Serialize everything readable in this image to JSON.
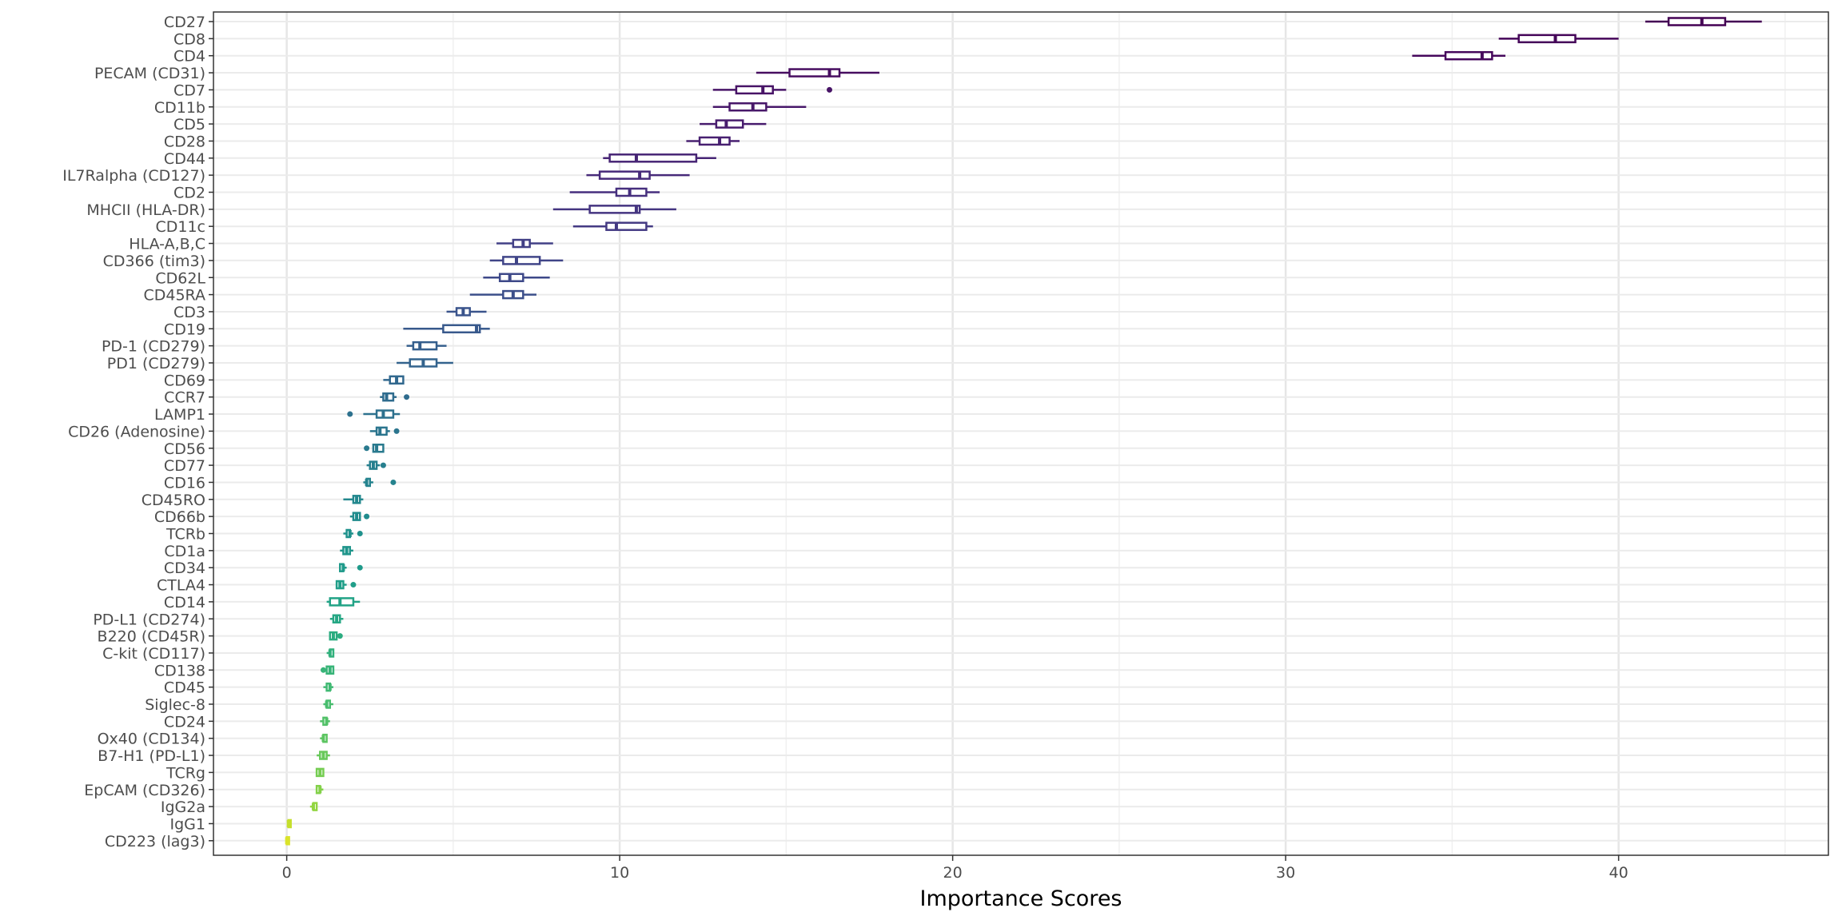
{
  "chart_data": {
    "type": "boxplot",
    "title": "",
    "xlabel": "Importance Scores",
    "ylabel": "",
    "xlim": [
      -2.2,
      46.3
    ],
    "x_ticks": [
      0,
      10,
      20,
      30,
      40
    ],
    "x_tick_labels": [
      "0",
      "10",
      "20",
      "30",
      "40"
    ],
    "grid": true,
    "legend": "none",
    "color_scale": "viridis",
    "series": [
      {
        "name": "CD27",
        "min": 40.8,
        "q1": 41.5,
        "median": 42.5,
        "q3": 43.2,
        "max": 44.3,
        "outliers": [],
        "color": "#440154"
      },
      {
        "name": "CD8",
        "min": 36.4,
        "q1": 37.0,
        "median": 38.1,
        "q3": 38.7,
        "max": 40.0,
        "outliers": [],
        "color": "#450559"
      },
      {
        "name": "CD4",
        "min": 33.8,
        "q1": 34.8,
        "median": 35.9,
        "q3": 36.2,
        "max": 36.6,
        "outliers": [],
        "color": "#46085c"
      },
      {
        "name": "PECAM (CD31)",
        "min": 14.1,
        "q1": 15.1,
        "median": 16.3,
        "q3": 16.6,
        "max": 17.8,
        "outliers": [],
        "color": "#470d60"
      },
      {
        "name": "CD7",
        "min": 12.8,
        "q1": 13.5,
        "median": 14.3,
        "q3": 14.6,
        "max": 15.0,
        "outliers": [
          16.3
        ],
        "color": "#481467"
      },
      {
        "name": "CD11b",
        "min": 12.8,
        "q1": 13.3,
        "median": 14.0,
        "q3": 14.4,
        "max": 15.6,
        "outliers": [],
        "color": "#48186a"
      },
      {
        "name": "CD5",
        "min": 12.4,
        "q1": 12.9,
        "median": 13.2,
        "q3": 13.7,
        "max": 14.4,
        "outliers": [],
        "color": "#481c6e"
      },
      {
        "name": "CD28",
        "min": 12.0,
        "q1": 12.4,
        "median": 13.0,
        "q3": 13.3,
        "max": 13.6,
        "outliers": [],
        "color": "#482071"
      },
      {
        "name": "CD44",
        "min": 9.5,
        "q1": 9.7,
        "median": 10.5,
        "q3": 12.3,
        "max": 12.9,
        "outliers": [],
        "color": "#472575"
      },
      {
        "name": "IL7Ralpha (CD127)",
        "min": 9.0,
        "q1": 9.4,
        "median": 10.6,
        "q3": 10.9,
        "max": 12.1,
        "outliers": [],
        "color": "#472a7a"
      },
      {
        "name": "CD2",
        "min": 8.5,
        "q1": 9.9,
        "median": 10.3,
        "q3": 10.8,
        "max": 11.2,
        "outliers": [],
        "color": "#462f7e"
      },
      {
        "name": "MHCII (HLA-DR)",
        "min": 8.0,
        "q1": 9.1,
        "median": 10.5,
        "q3": 10.6,
        "max": 11.7,
        "outliers": [],
        "color": "#453581"
      },
      {
        "name": "CD11c",
        "min": 8.6,
        "q1": 9.6,
        "median": 9.9,
        "q3": 10.8,
        "max": 11.0,
        "outliers": [],
        "color": "#443a83"
      },
      {
        "name": "HLA-A,B,C",
        "min": 6.3,
        "q1": 6.8,
        "median": 7.1,
        "q3": 7.3,
        "max": 8.0,
        "outliers": [],
        "color": "#424086"
      },
      {
        "name": "CD366 (tim3)",
        "min": 6.1,
        "q1": 6.5,
        "median": 6.9,
        "q3": 7.6,
        "max": 8.3,
        "outliers": [],
        "color": "#404588"
      },
      {
        "name": "CD62L",
        "min": 5.9,
        "q1": 6.4,
        "median": 6.7,
        "q3": 7.1,
        "max": 7.9,
        "outliers": [],
        "color": "#3e4989"
      },
      {
        "name": "CD45RA",
        "min": 5.5,
        "q1": 6.5,
        "median": 6.8,
        "q3": 7.1,
        "max": 7.5,
        "outliers": [],
        "color": "#3c4f8a"
      },
      {
        "name": "CD3",
        "min": 4.8,
        "q1": 5.1,
        "median": 5.3,
        "q3": 5.5,
        "max": 6.0,
        "outliers": [],
        "color": "#3a548c"
      },
      {
        "name": "CD19",
        "min": 3.5,
        "q1": 4.7,
        "median": 5.7,
        "q3": 5.8,
        "max": 6.1,
        "outliers": [],
        "color": "#38598c"
      },
      {
        "name": "PD-1 (CD279)",
        "min": 3.6,
        "q1": 3.8,
        "median": 4.0,
        "q3": 4.5,
        "max": 4.8,
        "outliers": [],
        "color": "#355f8d"
      },
      {
        "name": "PD1 (CD279)",
        "min": 3.3,
        "q1": 3.7,
        "median": 4.1,
        "q3": 4.5,
        "max": 5.0,
        "outliers": [],
        "color": "#33638d"
      },
      {
        "name": "CD69",
        "min": 2.9,
        "q1": 3.1,
        "median": 3.3,
        "q3": 3.5,
        "max": 3.5,
        "outliers": [],
        "color": "#31688e"
      },
      {
        "name": "CCR7",
        "min": 2.8,
        "q1": 2.9,
        "median": 3.0,
        "q3": 3.2,
        "max": 3.3,
        "outliers": [
          3.6
        ],
        "color": "#2f6c8e"
      },
      {
        "name": "LAMP1",
        "min": 2.3,
        "q1": 2.7,
        "median": 2.9,
        "q3": 3.2,
        "max": 3.4,
        "outliers": [
          1.9
        ],
        "color": "#2d718e"
      },
      {
        "name": "CD26 (Adenosine)",
        "min": 2.5,
        "q1": 2.7,
        "median": 2.8,
        "q3": 3.0,
        "max": 3.1,
        "outliers": [
          3.3
        ],
        "color": "#2b758e"
      },
      {
        "name": "CD56",
        "min": 2.6,
        "q1": 2.6,
        "median": 2.7,
        "q3": 2.9,
        "max": 2.9,
        "outliers": [
          2.4
        ],
        "color": "#297a8e"
      },
      {
        "name": "CD77",
        "min": 2.4,
        "q1": 2.5,
        "median": 2.6,
        "q3": 2.7,
        "max": 2.8,
        "outliers": [
          2.9
        ],
        "color": "#277f8e"
      },
      {
        "name": "CD16",
        "min": 2.3,
        "q1": 2.4,
        "median": 2.4,
        "q3": 2.5,
        "max": 2.6,
        "outliers": [
          3.2
        ],
        "color": "#25838e"
      },
      {
        "name": "CD45RO",
        "min": 1.7,
        "q1": 2.0,
        "median": 2.1,
        "q3": 2.2,
        "max": 2.3,
        "outliers": [],
        "color": "#23888e"
      },
      {
        "name": "CD66b",
        "min": 1.9,
        "q1": 2.0,
        "median": 2.1,
        "q3": 2.2,
        "max": 2.2,
        "outliers": [
          2.4
        ],
        "color": "#218c8d"
      },
      {
        "name": "TCRb",
        "min": 1.7,
        "q1": 1.8,
        "median": 1.9,
        "q3": 1.9,
        "max": 2.0,
        "outliers": [
          2.2
        ],
        "color": "#1f918c"
      },
      {
        "name": "CD1a",
        "min": 1.6,
        "q1": 1.7,
        "median": 1.8,
        "q3": 1.9,
        "max": 2.0,
        "outliers": [],
        "color": "#1f958b"
      },
      {
        "name": "CD34",
        "min": 1.6,
        "q1": 1.6,
        "median": 1.7,
        "q3": 1.7,
        "max": 1.8,
        "outliers": [
          2.2
        ],
        "color": "#1f9a8a"
      },
      {
        "name": "CTLA4",
        "min": 1.5,
        "q1": 1.5,
        "median": 1.6,
        "q3": 1.7,
        "max": 1.8,
        "outliers": [
          2.0
        ],
        "color": "#209e89"
      },
      {
        "name": "CD14",
        "min": 1.2,
        "q1": 1.3,
        "median": 1.6,
        "q3": 2.0,
        "max": 2.2,
        "outliers": [],
        "color": "#22a386"
      },
      {
        "name": "PD-L1 (CD274)",
        "min": 1.3,
        "q1": 1.4,
        "median": 1.5,
        "q3": 1.6,
        "max": 1.7,
        "outliers": [],
        "color": "#26a784"
      },
      {
        "name": "B220 (CD45R)",
        "min": 1.3,
        "q1": 1.3,
        "median": 1.4,
        "q3": 1.5,
        "max": 1.5,
        "outliers": [
          1.6
        ],
        "color": "#2bac80"
      },
      {
        "name": "C-kit (CD117)",
        "min": 1.2,
        "q1": 1.3,
        "median": 1.3,
        "q3": 1.4,
        "max": 1.4,
        "outliers": [],
        "color": "#31b07c"
      },
      {
        "name": "CD138",
        "min": 1.2,
        "q1": 1.2,
        "median": 1.3,
        "q3": 1.4,
        "max": 1.4,
        "outliers": [
          1.1
        ],
        "color": "#38b478"
      },
      {
        "name": "CD45",
        "min": 1.1,
        "q1": 1.2,
        "median": 1.3,
        "q3": 1.3,
        "max": 1.4,
        "outliers": [],
        "color": "#40b973"
      },
      {
        "name": "Siglec-8",
        "min": 1.1,
        "q1": 1.2,
        "median": 1.2,
        "q3": 1.3,
        "max": 1.4,
        "outliers": [],
        "color": "#48bd6e"
      },
      {
        "name": "CD24",
        "min": 1.0,
        "q1": 1.1,
        "median": 1.2,
        "q3": 1.2,
        "max": 1.3,
        "outliers": [],
        "color": "#52c168"
      },
      {
        "name": "Ox40 (CD134)",
        "min": 1.0,
        "q1": 1.1,
        "median": 1.1,
        "q3": 1.2,
        "max": 1.2,
        "outliers": [],
        "color": "#5cc561"
      },
      {
        "name": "B7-H1 (PD-L1)",
        "min": 0.9,
        "q1": 1.0,
        "median": 1.1,
        "q3": 1.2,
        "max": 1.3,
        "outliers": [],
        "color": "#68c95a"
      },
      {
        "name": "TCRg",
        "min": 0.9,
        "q1": 0.9,
        "median": 1.0,
        "q3": 1.1,
        "max": 1.1,
        "outliers": [],
        "color": "#75cd52"
      },
      {
        "name": "EpCAM (CD326)",
        "min": 0.9,
        "q1": 0.9,
        "median": 1.0,
        "q3": 1.0,
        "max": 1.1,
        "outliers": [],
        "color": "#83d149"
      },
      {
        "name": "IgG2a",
        "min": 0.7,
        "q1": 0.8,
        "median": 0.8,
        "q3": 0.9,
        "max": 0.9,
        "outliers": [],
        "color": "#92d540"
      },
      {
        "name": "IgG1",
        "min": 0.05,
        "q1": 0.05,
        "median": 0.05,
        "q3": 0.05,
        "max": 0.06,
        "outliers": [],
        "color": "#c5df2d"
      },
      {
        "name": "CD223 (lag3)",
        "min": 0.0,
        "q1": 0.0,
        "median": 0.0,
        "q3": 0.01,
        "max": 0.02,
        "outliers": [],
        "color": "#dae32a"
      }
    ]
  }
}
